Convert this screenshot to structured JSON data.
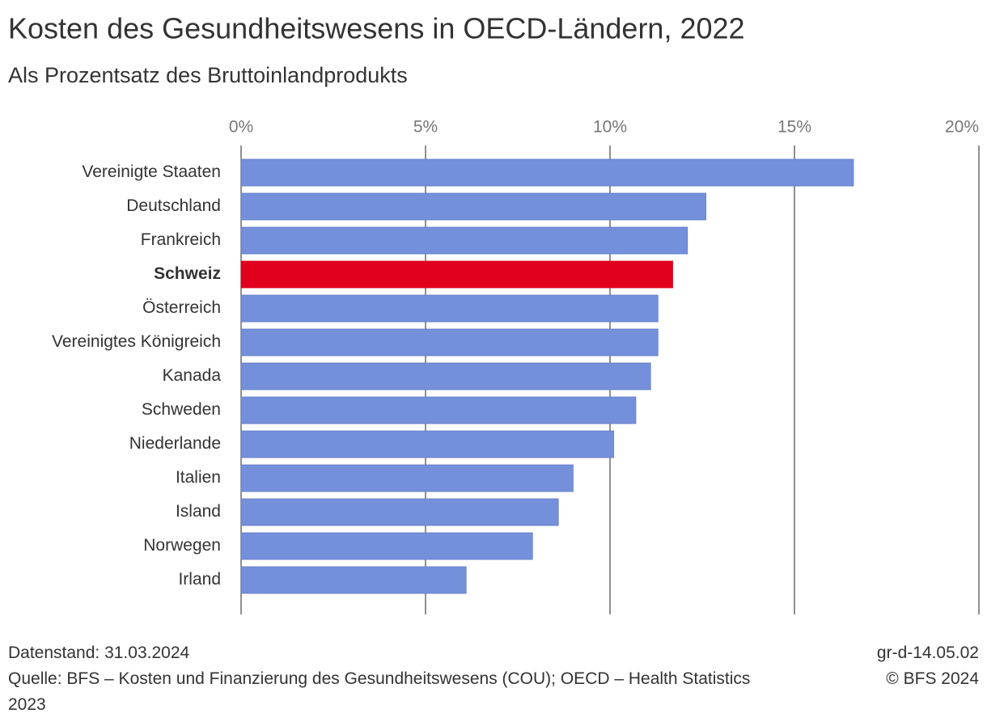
{
  "chart_data": {
    "type": "barh",
    "title": "Kosten des Gesundheitswesens in OECD-Ländern, 2022",
    "subtitle": "Als Prozentsatz des Bruttoinlandprodukts",
    "categories": [
      "Vereinigte Staaten",
      "Deutschland",
      "Frankreich",
      "Schweiz",
      "Österreich",
      "Vereinigtes Königreich",
      "Kanada",
      "Schweden",
      "Niederlande",
      "Italien",
      "Island",
      "Norwegen",
      "Irland"
    ],
    "values": [
      16.6,
      12.6,
      12.1,
      11.7,
      11.3,
      11.3,
      11.1,
      10.7,
      10.1,
      9.0,
      8.6,
      7.9,
      6.1
    ],
    "color": "#7590db",
    "highlight": 3,
    "highlight_color": "#e0001b",
    "xlim": [
      0,
      20
    ],
    "xticks": [
      {
        "value": 0,
        "label": "0%"
      },
      {
        "value": 5,
        "label": "5%"
      },
      {
        "value": 10,
        "label": "10%"
      },
      {
        "value": 15,
        "label": "15%"
      },
      {
        "value": 20,
        "label": "20%"
      }
    ],
    "grid": true,
    "notes": [
      "Datenstand: 31.03.2024",
      "Quelle: BFS – Kosten und Finanzierung des Gesundheitswesens (COU); OECD – Health Statistics 2023"
    ],
    "notes_right": [
      "gr-d-14.05.02",
      "© BFS 2024"
    ]
  }
}
